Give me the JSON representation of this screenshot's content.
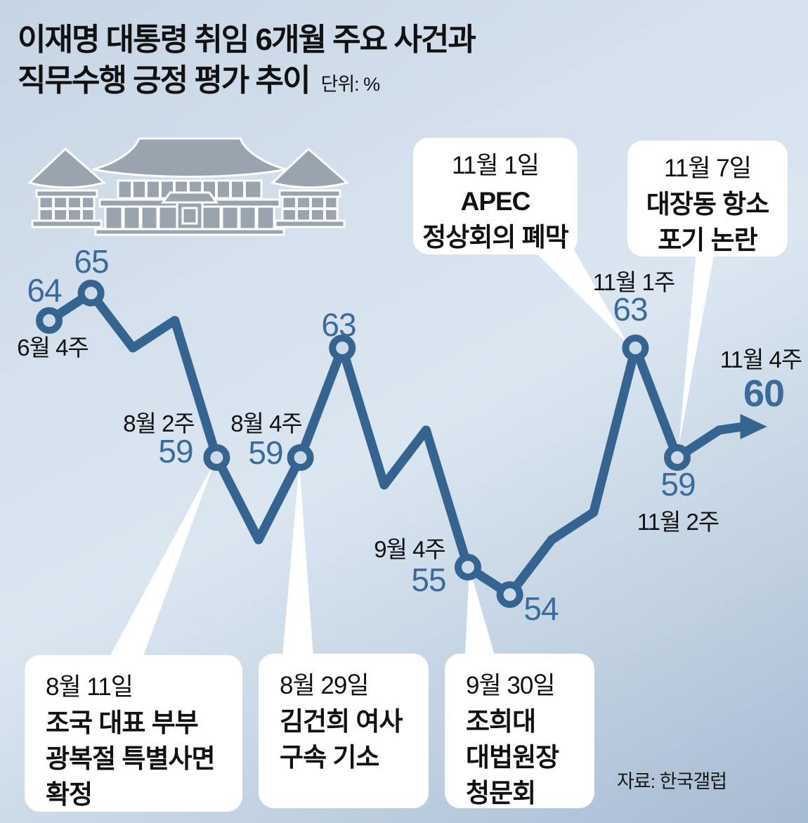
{
  "header": {
    "title_line1": "이재명 대통령 취임 6개월 주요 사건과",
    "title_line2": "직무수행 긍정 평가 추이",
    "unit": "단위: %"
  },
  "source": "자료: 한국갤럽",
  "colors": {
    "line": "#34648f",
    "value_text": "#3a6b9c",
    "marker_fill": "#ccdae9",
    "week_text": "#111111",
    "callout_bg": "#ffffff",
    "house": "#99a4af",
    "bg_light": "#dbe6f1",
    "bg_dark": "#a6bad1"
  },
  "chart_data": {
    "type": "line",
    "title": "이재명 대통령 취임 6개월 직무수행 긍정 평가 추이",
    "unit": "%",
    "ylim": [
      52,
      66
    ],
    "grid": false,
    "legend": false,
    "points": [
      {
        "value": 64,
        "marker": true,
        "week": "6월 4주"
      },
      {
        "value": 65,
        "marker": true
      },
      {
        "value": 63,
        "marker": false
      },
      {
        "value": 64,
        "marker": false
      },
      {
        "value": 59,
        "marker": true,
        "week": "8월 2주"
      },
      {
        "value": 56,
        "marker": false
      },
      {
        "value": 59,
        "marker": true,
        "week": "8월 4주"
      },
      {
        "value": 63,
        "marker": true
      },
      {
        "value": 58,
        "marker": false
      },
      {
        "value": 60,
        "marker": false
      },
      {
        "value": 55,
        "marker": true,
        "week": "9월 4주"
      },
      {
        "value": 54,
        "marker": true
      },
      {
        "value": 56,
        "marker": false
      },
      {
        "value": 57,
        "marker": false
      },
      {
        "value": 63,
        "marker": true,
        "week": "11월 1주"
      },
      {
        "value": 59,
        "marker": true,
        "week": "11월 2주"
      },
      {
        "value": 60,
        "marker": false
      }
    ],
    "arrow": {
      "week": "11월 4주",
      "value": 60
    }
  },
  "callouts": [
    {
      "id": "apec",
      "lines": [
        "11월 1일",
        "APEC",
        "정상회의 폐막"
      ]
    },
    {
      "id": "nov7",
      "lines": [
        "11월 7일",
        "대장동 항소",
        "포기 논란"
      ]
    },
    {
      "id": "aug11",
      "lines": [
        "8월 11일",
        "조국 대표 부부",
        "광복절 특별사면",
        "확정"
      ]
    },
    {
      "id": "aug29",
      "lines": [
        "8월 29일",
        "김건희 여사",
        "구속 기소"
      ]
    },
    {
      "id": "sep30",
      "lines": [
        "9월 30일",
        "조희대",
        "대법원장",
        "청문회"
      ]
    }
  ]
}
